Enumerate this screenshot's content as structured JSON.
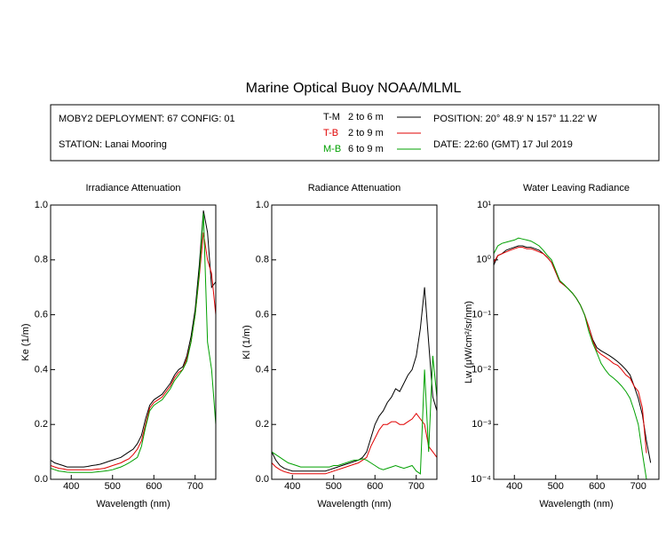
{
  "title": "Marine Optical Buoy NOAA/MLML",
  "info": {
    "deployment": "MOBY2 DEPLOYMENT: 67 CONFIG: 01",
    "station": "STATION: Lanai Mooring",
    "position": "POSITION: 20° 48.9' N   157° 11.22' W",
    "date": "DATE: 22:60 (GMT) 17 Jul 2019",
    "legend": [
      {
        "name": "T-M",
        "depth": "2 to 6  m",
        "color": "#000000"
      },
      {
        "name": "T-B",
        "depth": "2 to 9  m",
        "color": "#e00000"
      },
      {
        "name": "M-B",
        "depth": "6 to 9  m",
        "color": "#00a000"
      }
    ]
  },
  "chart_data": [
    {
      "type": "line",
      "title": "Irradiance Attenuation",
      "x_label": "Wavelength (nm)",
      "y_label": "Ke  (1/m)",
      "x": [
        350,
        360,
        370,
        380,
        390,
        400,
        410,
        420,
        430,
        440,
        450,
        460,
        470,
        480,
        490,
        500,
        510,
        520,
        530,
        540,
        550,
        560,
        570,
        580,
        590,
        600,
        610,
        620,
        630,
        640,
        650,
        660,
        670,
        680,
        690,
        700,
        710,
        720,
        730,
        740,
        750
      ],
      "xlim": [
        350,
        750
      ],
      "xticks": [
        400,
        500,
        600,
        700
      ],
      "ylim": [
        0,
        1
      ],
      "yticks": [
        {
          "value": 0,
          "label": "0.0"
        },
        0.2,
        0.4,
        0.6,
        0.8,
        {
          "value": 1,
          "label": "1.0"
        }
      ],
      "series": [
        {
          "color": "#000000",
          "values": [
            0.07,
            0.06,
            0.055,
            0.05,
            0.045,
            0.045,
            0.045,
            0.045,
            0.045,
            0.047,
            0.05,
            0.052,
            0.055,
            0.06,
            0.065,
            0.07,
            0.075,
            0.08,
            0.09,
            0.1,
            0.11,
            0.13,
            0.16,
            0.22,
            0.27,
            0.29,
            0.3,
            0.31,
            0.33,
            0.35,
            0.38,
            0.4,
            0.41,
            0.45,
            0.52,
            0.62,
            0.78,
            0.98,
            0.9,
            0.7,
            0.72
          ]
        },
        {
          "color": "#e00000",
          "values": [
            0.05,
            0.045,
            0.04,
            0.038,
            0.035,
            0.035,
            0.035,
            0.035,
            0.035,
            0.035,
            0.035,
            0.037,
            0.038,
            0.04,
            0.045,
            0.05,
            0.055,
            0.06,
            0.068,
            0.075,
            0.09,
            0.11,
            0.14,
            0.2,
            0.26,
            0.28,
            0.29,
            0.3,
            0.32,
            0.34,
            0.37,
            0.39,
            0.4,
            0.44,
            0.5,
            0.6,
            0.74,
            0.9,
            0.8,
            0.75,
            0.6
          ]
        },
        {
          "color": "#00a000",
          "values": [
            0.04,
            0.035,
            0.03,
            0.028,
            0.026,
            0.025,
            0.025,
            0.025,
            0.025,
            0.025,
            0.025,
            0.027,
            0.028,
            0.03,
            0.032,
            0.035,
            0.04,
            0.045,
            0.052,
            0.06,
            0.07,
            0.08,
            0.12,
            0.19,
            0.25,
            0.27,
            0.28,
            0.29,
            0.31,
            0.33,
            0.36,
            0.38,
            0.4,
            0.43,
            0.5,
            0.6,
            0.75,
            0.97,
            0.5,
            0.4,
            0.2
          ]
        }
      ]
    },
    {
      "type": "line",
      "title": "Radiance Attenuation",
      "x_label": "Wavelength (nm)",
      "y_label": "Kl  (1/m)",
      "x": [
        350,
        360,
        370,
        380,
        390,
        400,
        410,
        420,
        430,
        440,
        450,
        460,
        470,
        480,
        490,
        500,
        510,
        520,
        530,
        540,
        550,
        560,
        570,
        580,
        590,
        600,
        610,
        620,
        630,
        640,
        650,
        660,
        670,
        680,
        690,
        700,
        710,
        720,
        730,
        740,
        750
      ],
      "xlim": [
        350,
        750
      ],
      "xticks": [
        400,
        500,
        600,
        700
      ],
      "ylim": [
        0,
        1
      ],
      "yticks": [
        {
          "value": 0,
          "label": "0.0"
        },
        0.2,
        0.4,
        0.6,
        0.8,
        {
          "value": 1,
          "label": "1.0"
        }
      ],
      "series": [
        {
          "color": "#000000",
          "values": [
            0.1,
            0.07,
            0.05,
            0.04,
            0.035,
            0.03,
            0.03,
            0.03,
            0.03,
            0.03,
            0.03,
            0.03,
            0.03,
            0.03,
            0.035,
            0.04,
            0.045,
            0.05,
            0.055,
            0.06,
            0.065,
            0.07,
            0.08,
            0.1,
            0.15,
            0.2,
            0.23,
            0.25,
            0.28,
            0.3,
            0.33,
            0.32,
            0.35,
            0.38,
            0.4,
            0.45,
            0.55,
            0.7,
            0.5,
            0.3,
            0.25
          ]
        },
        {
          "color": "#e00000",
          "values": [
            0.06,
            0.045,
            0.035,
            0.028,
            0.024,
            0.02,
            0.02,
            0.02,
            0.02,
            0.02,
            0.02,
            0.02,
            0.02,
            0.02,
            0.025,
            0.03,
            0.035,
            0.04,
            0.045,
            0.05,
            0.055,
            0.06,
            0.07,
            0.08,
            0.12,
            0.15,
            0.18,
            0.2,
            0.2,
            0.21,
            0.21,
            0.2,
            0.2,
            0.21,
            0.22,
            0.24,
            0.22,
            0.2,
            0.12,
            0.1,
            0.08
          ]
        },
        {
          "color": "#00a000",
          "values": [
            0.1,
            0.09,
            0.08,
            0.07,
            0.06,
            0.055,
            0.05,
            0.045,
            0.045,
            0.045,
            0.045,
            0.045,
            0.045,
            0.045,
            0.045,
            0.05,
            0.05,
            0.055,
            0.06,
            0.065,
            0.07,
            0.07,
            0.075,
            0.07,
            0.06,
            0.05,
            0.04,
            0.035,
            0.04,
            0.045,
            0.05,
            0.045,
            0.04,
            0.045,
            0.05,
            0.03,
            0.02,
            0.4,
            0.1,
            0.45,
            0.3
          ]
        }
      ]
    },
    {
      "type": "line",
      "title": "Water Leaving Radiance",
      "x_label": "Wavelength (nm)",
      "y_label": "Lw  (μW/cm²/sr/nm)",
      "x": [
        350,
        360,
        370,
        380,
        390,
        400,
        410,
        420,
        430,
        440,
        450,
        460,
        470,
        480,
        490,
        500,
        510,
        520,
        530,
        540,
        550,
        560,
        570,
        580,
        590,
        600,
        610,
        620,
        630,
        640,
        650,
        660,
        670,
        680,
        690,
        700,
        710,
        720,
        730,
        740,
        750
      ],
      "xlim": [
        350,
        750
      ],
      "xticks": [
        400,
        500,
        600,
        700
      ],
      "log_y": true,
      "ylim": [
        0.0001,
        10
      ],
      "yticks": [
        {
          "value": 0.0001,
          "label": "10⁻⁴"
        },
        {
          "value": 0.001,
          "label": "10⁻³"
        },
        {
          "value": 0.01,
          "label": "10⁻²"
        },
        {
          "value": 0.1,
          "label": "10⁻¹"
        },
        {
          "value": 1,
          "label": "10⁰"
        },
        {
          "value": 10,
          "label": "10¹"
        }
      ],
      "series": [
        {
          "color": "#000000",
          "values": [
            0.8,
            1.2,
            1.3,
            1.5,
            1.6,
            1.7,
            1.8,
            1.8,
            1.7,
            1.7,
            1.6,
            1.5,
            1.3,
            1.1,
            0.9,
            0.6,
            0.4,
            0.35,
            0.3,
            0.25,
            0.2,
            0.15,
            0.1,
            0.06,
            0.035,
            0.025,
            0.022,
            0.02,
            0.018,
            0.016,
            0.014,
            0.012,
            0.01,
            0.008,
            0.005,
            0.003,
            0.0015,
            0.0005,
            0.0002,
            null,
            null
          ]
        },
        {
          "color": "#e00000",
          "values": [
            0.9,
            1.2,
            1.3,
            1.4,
            1.5,
            1.6,
            1.7,
            1.7,
            1.6,
            1.6,
            1.5,
            1.4,
            1.3,
            1.1,
            0.9,
            0.6,
            0.4,
            0.35,
            0.3,
            0.25,
            0.2,
            0.15,
            0.1,
            0.06,
            0.033,
            0.022,
            0.019,
            0.017,
            0.015,
            0.013,
            0.012,
            0.01,
            0.008,
            0.007,
            0.005,
            0.004,
            0.002,
            0.0003,
            null,
            null,
            null
          ]
        },
        {
          "color": "#00a000",
          "values": [
            1.3,
            1.8,
            2.0,
            2.1,
            2.2,
            2.3,
            2.5,
            2.4,
            2.3,
            2.2,
            2.0,
            1.8,
            1.5,
            1.2,
            1.0,
            0.65,
            0.42,
            0.36,
            0.3,
            0.25,
            0.2,
            0.15,
            0.1,
            0.05,
            0.03,
            0.02,
            0.013,
            0.01,
            0.008,
            0.007,
            0.006,
            0.005,
            0.004,
            0.003,
            0.0018,
            0.001,
            0.0003,
            0.0001,
            null,
            null,
            null
          ]
        }
      ]
    }
  ]
}
